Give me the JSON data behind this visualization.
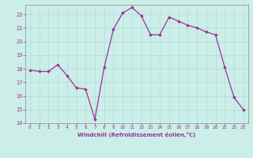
{
  "x": [
    0,
    1,
    2,
    3,
    4,
    5,
    6,
    7,
    8,
    9,
    10,
    11,
    12,
    13,
    14,
    15,
    16,
    17,
    18,
    19,
    20,
    21,
    22,
    23
  ],
  "y": [
    17.9,
    17.8,
    17.8,
    18.3,
    17.5,
    16.6,
    16.5,
    14.3,
    18.1,
    20.9,
    22.1,
    22.5,
    21.9,
    20.5,
    20.5,
    21.8,
    21.5,
    21.2,
    21.0,
    20.7,
    20.5,
    18.1,
    15.9,
    15.0
  ],
  "line_color": "#993399",
  "marker": "D",
  "marker_size": 1.8,
  "bg_color": "#cceee8",
  "grid_color": "#aadddd",
  "xlabel": "Windchill (Refroidissement éolien,°C)",
  "xlabel_color": "#993399",
  "tick_color": "#993399",
  "ylim": [
    14,
    22.7
  ],
  "xlim": [
    -0.5,
    23.5
  ],
  "yticks": [
    14,
    15,
    16,
    17,
    18,
    19,
    20,
    21,
    22
  ],
  "xticks": [
    0,
    1,
    2,
    3,
    4,
    5,
    6,
    7,
    8,
    9,
    10,
    11,
    12,
    13,
    14,
    15,
    16,
    17,
    18,
    19,
    20,
    21,
    22,
    23
  ],
  "title_color": "#993399",
  "spine_color": "#888888"
}
